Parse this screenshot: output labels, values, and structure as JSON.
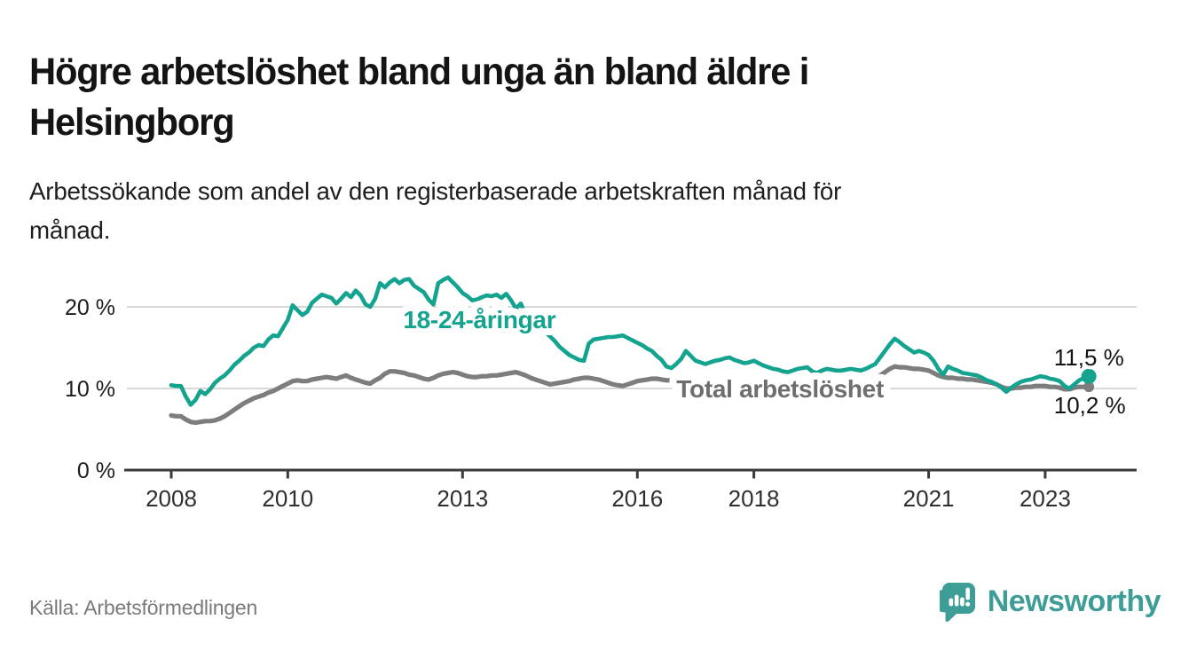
{
  "header": {
    "title_line1": "Högre arbetslöshet bland unga än bland äldre i",
    "title_line2": "Helsingborg",
    "subtitle_line1": "Arbetssökande som andel av den registerbaserade arbetskraften månad för",
    "subtitle_line2": "månad."
  },
  "footer": {
    "source": "Källa: Arbetsförmedlingen",
    "brand": "Newsworthy",
    "brand_color": "#3f9d98"
  },
  "chart_data": {
    "type": "line",
    "unit": "%",
    "x_axis": {
      "ticks": [
        2008,
        2010,
        2013,
        2016,
        2018,
        2021,
        2023
      ],
      "labels": [
        "2008",
        "2010",
        "2013",
        "2016",
        "2018",
        "2021",
        "2023"
      ]
    },
    "y_axis": {
      "ticks": [
        0,
        10,
        20
      ],
      "labels": [
        "0 %",
        "10 %",
        "20 %"
      ],
      "range": [
        0,
        25.5
      ]
    },
    "grid": "horizontal",
    "colors": {
      "grid": "#d8d8d8",
      "axis": "#3a3a3a",
      "x_label": "#2f2f2f",
      "y_label": "#1c1c1c",
      "value_label": "#141414"
    },
    "annotations": [
      {
        "text": "11,5 %",
        "x_year": 2023.15,
        "value": 12.83,
        "anchor": "start"
      },
      {
        "text": "10,2 %",
        "x_year": 2023.15,
        "value": 6.96,
        "anchor": "start"
      }
    ],
    "series": [
      {
        "id": "total",
        "name": "Total arbetslöshet",
        "color": "#7d7d7d",
        "label_color": "#6e6e6e",
        "width": 5.2,
        "marker_radius": 6,
        "start_year": 2008,
        "months_step": 1,
        "end_value": 10.2,
        "end_label": "10,2 %",
        "inline_label": {
          "x_year": 2018.45,
          "value": 10.0
        },
        "values": [
          6.7,
          6.6,
          6.6,
          6.2,
          5.9,
          5.8,
          5.9,
          6.0,
          6.0,
          6.1,
          6.3,
          6.6,
          7.0,
          7.4,
          7.8,
          8.2,
          8.5,
          8.8,
          9.0,
          9.2,
          9.5,
          9.7,
          10.0,
          10.3,
          10.6,
          10.9,
          11.0,
          10.9,
          10.9,
          11.1,
          11.2,
          11.3,
          11.4,
          11.3,
          11.2,
          11.4,
          11.6,
          11.3,
          11.1,
          10.9,
          10.7,
          10.6,
          11.0,
          11.3,
          11.8,
          12.1,
          12.1,
          12.0,
          11.9,
          11.7,
          11.6,
          11.4,
          11.2,
          11.1,
          11.3,
          11.6,
          11.8,
          11.9,
          12.0,
          11.9,
          11.7,
          11.5,
          11.4,
          11.4,
          11.5,
          11.5,
          11.6,
          11.6,
          11.7,
          11.8,
          11.9,
          12.0,
          11.8,
          11.6,
          11.3,
          11.1,
          10.9,
          10.7,
          10.5,
          10.6,
          10.7,
          10.8,
          10.9,
          11.1,
          11.2,
          11.3,
          11.3,
          11.2,
          11.1,
          10.9,
          10.7,
          10.5,
          10.4,
          10.3,
          10.5,
          10.7,
          10.9,
          11.0,
          11.1,
          11.2,
          11.2,
          11.1,
          11.0,
          11.0,
          11.0,
          10.9,
          10.8,
          10.7,
          10.6,
          10.6,
          10.5,
          10.5,
          10.4,
          10.4,
          10.3,
          10.3,
          10.2,
          10.2,
          10.1,
          10.1,
          10.0,
          10.0,
          10.0,
          10.1,
          10.1,
          10.2,
          10.2,
          10.2,
          10.2,
          10.3,
          10.3,
          10.4,
          10.4,
          10.4,
          10.4,
          10.5,
          10.5,
          10.5,
          10.6,
          10.6,
          10.6,
          10.7,
          10.7,
          10.8,
          10.9,
          11.2,
          11.6,
          12.0,
          12.4,
          12.7,
          12.6,
          12.6,
          12.5,
          12.4,
          12.4,
          12.3,
          12.2,
          11.9,
          11.6,
          11.4,
          11.3,
          11.3,
          11.2,
          11.2,
          11.1,
          11.1,
          11.0,
          10.9,
          10.8,
          10.7,
          10.5,
          10.2,
          10.0,
          10.0,
          10.1,
          10.1,
          10.2,
          10.2,
          10.3,
          10.3,
          10.3,
          10.2,
          10.2,
          10.1,
          9.9,
          9.9,
          10.1,
          10.2,
          10.2,
          10.2
        ]
      },
      {
        "id": "youth",
        "name": "18-24-åringar",
        "color": "#14a38f",
        "label_color": "#14a38f",
        "width": 4.6,
        "marker_radius": 8.5,
        "start_year": 2008,
        "months_step": 1,
        "end_value": 11.5,
        "end_label": "11,5 %",
        "inline_label": {
          "x_year": 2013.29,
          "value": 18.48
        },
        "values": [
          10.4,
          10.3,
          10.3,
          9.0,
          8.0,
          8.6,
          9.7,
          9.3,
          9.9,
          10.7,
          11.2,
          11.6,
          12.2,
          12.9,
          13.4,
          14.0,
          14.4,
          15.0,
          15.3,
          15.2,
          16.0,
          16.5,
          16.4,
          17.4,
          18.4,
          20.2,
          19.6,
          19.0,
          19.4,
          20.5,
          21.0,
          21.5,
          21.3,
          21.1,
          20.4,
          21.0,
          21.7,
          21.2,
          22.0,
          21.4,
          20.3,
          20.0,
          21.0,
          22.9,
          22.4,
          23.0,
          23.4,
          22.9,
          23.3,
          23.4,
          22.6,
          22.2,
          21.8,
          20.9,
          20.3,
          22.9,
          23.3,
          23.6,
          23.0,
          22.4,
          21.7,
          21.3,
          20.8,
          20.9,
          21.2,
          21.4,
          21.3,
          21.5,
          21.1,
          21.6,
          20.8,
          19.8,
          20.4,
          19.0,
          17.8,
          17.5,
          17.3,
          16.9,
          16.4,
          15.8,
          15.1,
          14.6,
          14.1,
          13.8,
          13.5,
          13.4,
          15.5,
          16.0,
          16.1,
          16.2,
          16.3,
          16.3,
          16.4,
          16.5,
          16.2,
          15.9,
          15.6,
          15.3,
          14.9,
          14.6,
          14.0,
          13.5,
          12.7,
          12.5,
          13.0,
          13.6,
          14.6,
          14.0,
          13.4,
          13.2,
          13.0,
          13.2,
          13.4,
          13.5,
          13.7,
          13.8,
          13.5,
          13.3,
          13.1,
          13.2,
          13.4,
          13.1,
          12.8,
          12.6,
          12.4,
          12.3,
          12.1,
          12.0,
          12.2,
          12.4,
          12.5,
          12.6,
          12.1,
          11.9,
          12.2,
          12.4,
          12.3,
          12.2,
          12.2,
          12.3,
          12.4,
          12.3,
          12.2,
          12.4,
          12.7,
          13.0,
          13.8,
          14.6,
          15.4,
          16.1,
          15.7,
          15.2,
          14.8,
          14.4,
          14.6,
          14.4,
          14.1,
          13.4,
          12.4,
          11.7,
          12.7,
          12.4,
          12.2,
          11.9,
          11.8,
          11.7,
          11.6,
          11.3,
          11.0,
          10.8,
          10.5,
          10.1,
          9.6,
          10.1,
          10.5,
          10.8,
          11.0,
          11.1,
          11.3,
          11.5,
          11.4,
          11.2,
          11.1,
          10.9,
          10.3,
          10.0,
          10.5,
          11.0,
          11.3,
          11.5
        ]
      }
    ]
  }
}
